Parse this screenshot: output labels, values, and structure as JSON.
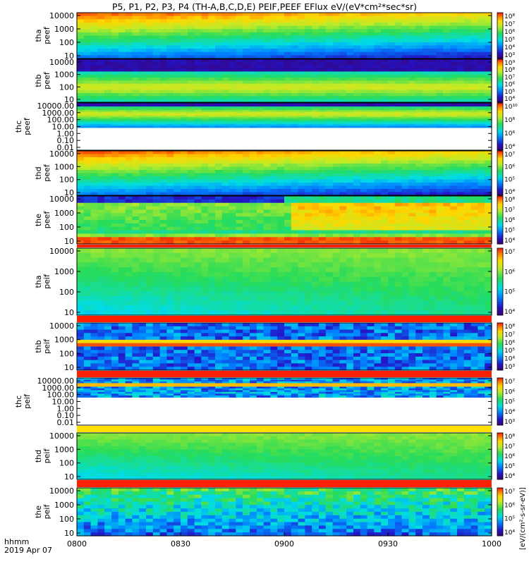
{
  "chart_data": {
    "type": "heatmap",
    "title": "P5, P1, P2, P3, P4 (TH-A,B,C,D,E) PEIF,PEEF EFlux eV/(eV*cm²*sec*sr)",
    "x_ticks": [
      "0800",
      "0830",
      "0900",
      "0930",
      "1000"
    ],
    "x_range": [
      "0800",
      "1000"
    ],
    "footer": {
      "line1": "hhmm",
      "line2": "2019 Apr 07"
    },
    "colorbar_label": "[eV/(cm²-s-sr-eV)]",
    "panels": [
      {
        "probe": "tha",
        "product": "peef",
        "yticks": [
          "10",
          "100",
          "1000",
          "10000"
        ],
        "cbticks": [
          "10³",
          "10⁴",
          "10⁵",
          "10⁶",
          "10⁷",
          "10⁸"
        ],
        "pattern": "hot_top"
      },
      {
        "probe": "thb",
        "product": "peef",
        "yticks": [
          "10",
          "100",
          "1000",
          "10000"
        ],
        "cbticks": [
          "10⁴",
          "10⁵",
          "10⁶",
          "10⁷",
          "10⁸",
          "10⁹"
        ],
        "pattern": "purple_band"
      },
      {
        "probe": "thc",
        "product": "peef",
        "yticks": [
          "0.01",
          "0.10",
          "1.00",
          "10.00",
          "100.00",
          "1000.00",
          "10000.00"
        ],
        "cbticks": [
          "10⁴",
          "10⁶",
          "10⁸",
          "10¹⁰"
        ],
        "pattern": "purple_band_short"
      },
      {
        "probe": "thd",
        "product": "peef",
        "yticks": [
          "10",
          "100",
          "1000",
          "10000"
        ],
        "cbticks": [
          "10⁴",
          "10⁵",
          "10⁶",
          "10⁷"
        ],
        "pattern": "hot_top"
      },
      {
        "probe": "the",
        "product": "peef",
        "yticks": [
          "10",
          "100",
          "1000",
          "10000"
        ],
        "cbticks": [
          "10⁴",
          "10⁵",
          "10⁶",
          "10⁷",
          "10⁸"
        ],
        "pattern": "the_peef"
      },
      {
        "probe": "tha",
        "product": "peif",
        "yticks": [
          "10",
          "100",
          "1000",
          "10000"
        ],
        "cbticks": [
          "10⁴",
          "10⁵",
          "10⁶",
          "10⁷"
        ],
        "pattern": "peif_green"
      },
      {
        "probe": "thb",
        "product": "peif",
        "yticks": [
          "10",
          "100",
          "1000",
          "10000"
        ],
        "cbticks": [
          "10³",
          "10⁴",
          "10⁵",
          "10⁶",
          "10⁷",
          "10⁸"
        ],
        "pattern": "peif_noisy"
      },
      {
        "probe": "thc",
        "product": "peif",
        "yticks": [
          "0.01",
          "0.10",
          "1.00",
          "10.00",
          "100.00",
          "1000.00",
          "10000.00"
        ],
        "cbticks": [
          "10³",
          "10⁴",
          "10⁵",
          "10⁶",
          "10⁷"
        ],
        "pattern": "peif_noisy_short"
      },
      {
        "probe": "thd",
        "product": "peif",
        "yticks": [
          "10",
          "100",
          "1000",
          "10000"
        ],
        "cbticks": [
          "10⁴",
          "10⁵",
          "10⁶",
          "10⁷",
          "10⁸"
        ],
        "pattern": "peif_green"
      },
      {
        "probe": "the",
        "product": "peif",
        "yticks": [
          "10",
          "100",
          "1000",
          "10000"
        ],
        "cbticks": [
          "10⁴",
          "10⁵",
          "10⁶",
          "10⁷"
        ],
        "pattern": "peif_noisy_the"
      }
    ]
  }
}
